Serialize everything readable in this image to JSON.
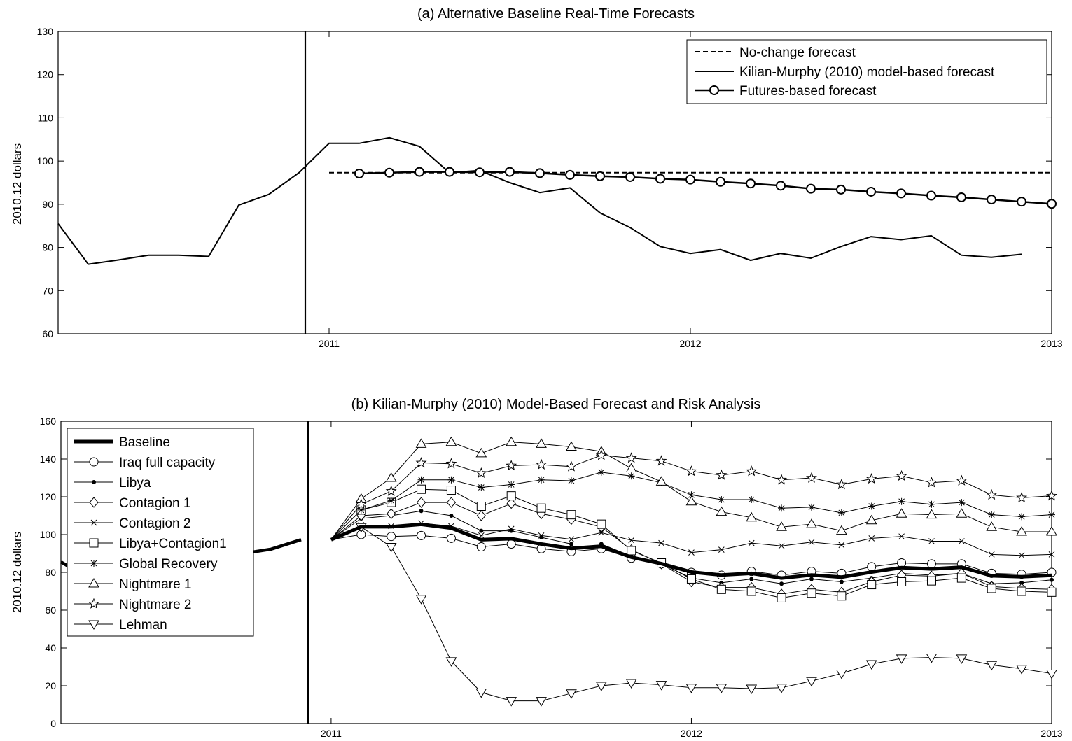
{
  "chart_data": [
    {
      "type": "line",
      "title": "(a) Alternative Baseline Real-Time Forecasts",
      "xlabel": "",
      "ylabel": "2010.12 dollars",
      "x_start": "2010-04",
      "x_ticks": [
        "2011",
        "2012",
        "2013"
      ],
      "xlim": [
        "2010-04",
        "2013-01"
      ],
      "ylim": [
        60,
        130
      ],
      "yticks": [
        60,
        70,
        80,
        90,
        100,
        110,
        120,
        130
      ],
      "legend_position": "top-right",
      "series": [
        {
          "name": "No-change forecast",
          "style": "dashed",
          "x_start": "2011-01",
          "values": [
            97.3,
            97.3,
            97.3,
            97.3,
            97.3,
            97.3,
            97.3,
            97.3,
            97.3,
            97.3,
            97.3,
            97.3,
            97.3,
            97.3,
            97.3,
            97.3,
            97.3,
            97.3,
            97.3,
            97.3,
            97.3,
            97.3,
            97.3,
            97.3,
            97.3
          ]
        },
        {
          "name": "Kilian-Murphy (2010) model-based forecast",
          "style": "solid",
          "x_start": "2010-04",
          "values": [
            85.5,
            76.1,
            77.1,
            78.2,
            78.2,
            77.9,
            89.8,
            92.3,
            97.3,
            104.1,
            104.1,
            105.4,
            103.4,
            97.3,
            97.8,
            95.0,
            92.7,
            93.8,
            88.0,
            84.6,
            80.2,
            78.6,
            79.5,
            77.0,
            78.6,
            77.5,
            80.2,
            82.5,
            81.8,
            82.7,
            78.2,
            77.7,
            78.4
          ]
        },
        {
          "name": "Futures-based forecast",
          "style": "circle",
          "x_start": "2011-02",
          "values": [
            97.1,
            97.3,
            97.5,
            97.5,
            97.4,
            97.5,
            97.2,
            96.8,
            96.5,
            96.3,
            95.9,
            95.7,
            95.2,
            94.8,
            94.3,
            93.6,
            93.4,
            92.9,
            92.5,
            92.0,
            91.6,
            91.1,
            90.6,
            90.1
          ]
        }
      ]
    },
    {
      "type": "line",
      "title": "(b) Kilian-Murphy (2010) Model-Based Forecast and Risk Analysis",
      "xlabel": "",
      "ylabel": "2010.12 dollars",
      "x_start": "2010-04",
      "x_ticks": [
        "2011",
        "2012",
        "2013"
      ],
      "xlim": [
        "2010-04",
        "2013-01"
      ],
      "ylim": [
        0,
        160
      ],
      "yticks": [
        0,
        20,
        40,
        60,
        80,
        100,
        120,
        140,
        160
      ],
      "legend_position": "top-left",
      "history": {
        "x_start": "2010-04",
        "values": [
          85.5,
          76.1,
          77.1,
          78.2,
          78.2,
          77.9,
          89.8,
          92.3,
          97.3
        ]
      },
      "series": [
        {
          "name": "Baseline",
          "marker": "none",
          "x_start": "2011-01",
          "values": [
            97.3,
            104.1,
            104.1,
            105.4,
            103.4,
            97.3,
            97.8,
            95.0,
            92.7,
            93.8,
            88.0,
            84.6,
            80.2,
            78.6,
            79.5,
            77.0,
            78.6,
            77.5,
            80.2,
            82.5,
            81.8,
            82.7,
            78.2,
            77.7,
            78.4
          ]
        },
        {
          "name": "Iraq full capacity",
          "marker": "circle",
          "x_start": "2011-01",
          "values": [
            97.3,
            100.0,
            99.0,
            99.5,
            98.0,
            93.5,
            95.0,
            92.5,
            91.0,
            92.5,
            87.5,
            84.5,
            80.0,
            78.5,
            80.5,
            78.5,
            80.5,
            79.5,
            83.0,
            85.0,
            84.5,
            84.5,
            79.5,
            79.0,
            80.0
          ]
        },
        {
          "name": "Libya",
          "marker": "dot",
          "x_start": "2011-01",
          "values": [
            97.3,
            108.5,
            110.0,
            112.5,
            110.0,
            102.0,
            102.0,
            98.5,
            95.0,
            95.0,
            88.5,
            84.5,
            77.0,
            74.5,
            76.5,
            74.0,
            76.5,
            75.0,
            77.0,
            79.5,
            78.5,
            79.5,
            74.0,
            74.5,
            76.0
          ]
        },
        {
          "name": "Contagion 1",
          "marker": "diamond",
          "x_start": "2011-01",
          "values": [
            97.3,
            110.0,
            111.0,
            117.0,
            117.0,
            110.0,
            116.5,
            111.0,
            108.0,
            104.0,
            92.0,
            84.5,
            75.0,
            72.0,
            72.0,
            68.5,
            71.0,
            69.5,
            75.0,
            78.5,
            78.0,
            79.5,
            72.5,
            71.5,
            71.0
          ]
        },
        {
          "name": "Contagion 2",
          "marker": "x",
          "x_start": "2011-01",
          "values": [
            97.3,
            105.0,
            104.5,
            106.0,
            104.5,
            99.5,
            103.0,
            99.5,
            97.5,
            101.0,
            97.0,
            95.5,
            90.5,
            92.0,
            95.5,
            94.0,
            96.0,
            94.5,
            98.0,
            99.0,
            96.5,
            96.5,
            89.5,
            89.0,
            89.5
          ]
        },
        {
          "name": "Libya+Contagion1",
          "marker": "square",
          "x_start": "2011-01",
          "values": [
            97.3,
            113.0,
            117.0,
            124.0,
            123.5,
            115.0,
            120.5,
            114.0,
            110.5,
            105.5,
            91.5,
            85.0,
            76.5,
            71.0,
            70.0,
            66.5,
            69.0,
            67.5,
            73.5,
            75.0,
            75.5,
            77.0,
            71.5,
            70.0,
            69.5
          ]
        },
        {
          "name": "Global Recovery",
          "marker": "asterisk",
          "x_start": "2011-01",
          "values": [
            97.3,
            113.0,
            118.0,
            129.0,
            129.0,
            125.0,
            126.5,
            129.0,
            128.5,
            133.0,
            131.0,
            127.5,
            121.0,
            118.5,
            118.5,
            114.0,
            114.5,
            111.5,
            115.0,
            117.5,
            116.0,
            117.0,
            110.5,
            109.5,
            110.5
          ]
        },
        {
          "name": "Nightmare 1",
          "marker": "triangle-up",
          "x_start": "2011-01",
          "values": [
            97.3,
            119.0,
            130.0,
            148.0,
            149.0,
            143.0,
            149.0,
            148.0,
            146.5,
            144.0,
            135.0,
            128.0,
            117.5,
            112.0,
            109.0,
            104.0,
            105.5,
            102.0,
            107.5,
            111.0,
            110.5,
            111.0,
            104.0,
            101.5,
            101.5
          ]
        },
        {
          "name": "Nightmare 2",
          "marker": "star",
          "x_start": "2011-01",
          "values": [
            97.3,
            116.0,
            123.0,
            138.0,
            137.5,
            132.5,
            136.5,
            137.0,
            136.0,
            142.0,
            140.5,
            139.0,
            133.5,
            131.5,
            133.5,
            129.0,
            130.0,
            126.5,
            129.5,
            131.0,
            127.5,
            128.5,
            121.0,
            119.5,
            120.5
          ]
        },
        {
          "name": "Lehman",
          "marker": "triangle-down",
          "x_start": "2011-01",
          "values": [
            97.3,
            104.0,
            93.5,
            66.0,
            33.0,
            16.5,
            12.0,
            12.0,
            16.0,
            20.0,
            21.5,
            20.5,
            19.0,
            19.0,
            18.5,
            19.0,
            22.5,
            26.5,
            31.5,
            34.5,
            35.0,
            34.5,
            31.0,
            29.0,
            26.5
          ]
        }
      ]
    }
  ]
}
